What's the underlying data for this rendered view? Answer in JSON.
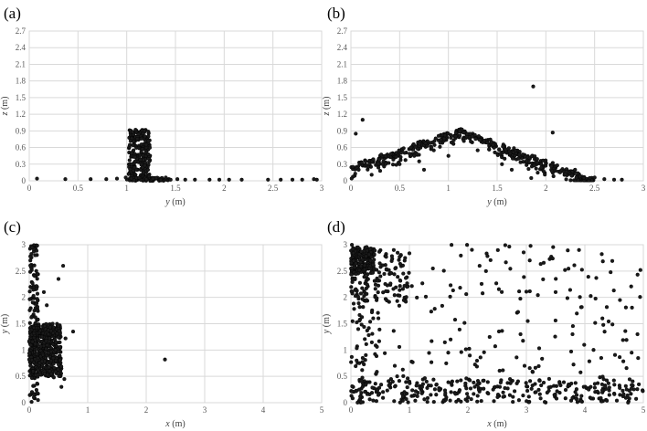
{
  "colors": {
    "point": "#1a1a1a",
    "grid": "#d9d9d9",
    "text": "#595959"
  },
  "chart_data": [
    {
      "id": "a",
      "panel_label": "(a)",
      "type": "scatter",
      "xlabel_var": "y",
      "xlabel_unit": " (m)",
      "ylabel_var": "z",
      "ylabel_unit": " (m)",
      "xlim": [
        0,
        3
      ],
      "ylim": [
        0,
        2.7
      ],
      "xticks": [
        "0",
        "0.5",
        "1",
        "1.5",
        "2",
        "2.5",
        "3"
      ],
      "yticks": [
        "0",
        "0.3",
        "0.6",
        "0.9",
        "1.2",
        "1.5",
        "1.8",
        "2.1",
        "2.4",
        "2.7"
      ],
      "grid": true,
      "points": [
        [
          0.08,
          0.04
        ],
        [
          0.37,
          0.03
        ],
        [
          0.63,
          0.03
        ],
        [
          0.79,
          0.03
        ],
        [
          0.9,
          0.04
        ],
        [
          0.99,
          0.06
        ],
        [
          1.02,
          0.12
        ],
        [
          1.05,
          0.3
        ],
        [
          1.07,
          0.55
        ],
        [
          1.04,
          0.72
        ],
        [
          1.06,
          0.88
        ],
        [
          1.09,
          0.92
        ],
        [
          1.12,
          0.84
        ],
        [
          1.15,
          0.76
        ],
        [
          1.18,
          0.9
        ],
        [
          1.2,
          0.65
        ],
        [
          1.22,
          0.48
        ],
        [
          1.14,
          0.38
        ],
        [
          1.1,
          0.2
        ],
        [
          1.17,
          0.15
        ],
        [
          1.23,
          0.08
        ],
        [
          1.27,
          0.04
        ],
        [
          1.35,
          0.02
        ],
        [
          1.45,
          0.02
        ],
        [
          1.52,
          0.03
        ],
        [
          1.6,
          0.02
        ],
        [
          1.7,
          0.02
        ],
        [
          1.85,
          0.02
        ],
        [
          1.95,
          0.02
        ],
        [
          2.05,
          0.02
        ],
        [
          2.18,
          0.02
        ],
        [
          2.45,
          0.02
        ],
        [
          2.58,
          0.02
        ],
        [
          2.7,
          0.02
        ],
        [
          2.8,
          0.02
        ],
        [
          2.92,
          0.03
        ],
        [
          2.95,
          0.02
        ]
      ],
      "clusters": [
        {
          "x": [
            1.02,
            1.24
          ],
          "y": [
            0.0,
            0.92
          ],
          "n": 230
        },
        {
          "x": [
            1.0,
            1.45
          ],
          "y": [
            0.0,
            0.06
          ],
          "n": 50
        }
      ]
    },
    {
      "id": "b",
      "panel_label": "(b)",
      "type": "scatter",
      "xlabel_var": "y",
      "xlabel_unit": " (m)",
      "ylabel_var": "z",
      "ylabel_unit": " (m)",
      "xlim": [
        0,
        3
      ],
      "ylim": [
        0,
        2.7
      ],
      "xticks": [
        "0",
        "0.5",
        "1",
        "1.5",
        "2",
        "2.5",
        "3"
      ],
      "yticks": [
        "0",
        "0.3",
        "0.6",
        "0.9",
        "1.2",
        "1.5",
        "1.8",
        "2.1",
        "2.4",
        "2.7"
      ],
      "grid": true,
      "points": [
        [
          0.05,
          0.85
        ],
        [
          0.12,
          1.1
        ],
        [
          0.02,
          0.25
        ],
        [
          0.08,
          0.2
        ],
        [
          1.87,
          1.7
        ],
        [
          2.07,
          0.87
        ],
        [
          0.3,
          0.18
        ],
        [
          0.5,
          0.3
        ],
        [
          0.7,
          0.35
        ],
        [
          0.75,
          0.2
        ],
        [
          1.0,
          0.45
        ],
        [
          1.3,
          0.55
        ],
        [
          1.55,
          0.3
        ],
        [
          1.65,
          0.2
        ],
        [
          1.72,
          0.4
        ],
        [
          1.85,
          0.05
        ],
        [
          1.9,
          0.22
        ],
        [
          2.2,
          0.12
        ],
        [
          2.35,
          0.08
        ],
        [
          2.45,
          0.05
        ],
        [
          2.6,
          0.03
        ],
        [
          2.7,
          0.02
        ],
        [
          2.78,
          0.02
        ],
        [
          2.3,
          0.2
        ],
        [
          2.5,
          0.06
        ],
        [
          1.95,
          0.3
        ],
        [
          0.65,
          0.45
        ],
        [
          0.85,
          0.55
        ]
      ],
      "profile": {
        "peak_x": 1.12,
        "peak_z": 0.92,
        "left_x": 0.0,
        "right_x": 2.5
      },
      "clusters": [
        {
          "profile": true,
          "n": 480
        }
      ]
    },
    {
      "id": "c",
      "panel_label": "(c)",
      "type": "scatter",
      "xlabel_var": "x",
      "xlabel_unit": " (m)",
      "ylabel_var": "y",
      "ylabel_unit": " (m)",
      "xlim": [
        0,
        5
      ],
      "ylim": [
        0,
        3
      ],
      "xticks": [
        "0",
        "1",
        "2",
        "3",
        "4",
        "5"
      ],
      "yticks": [
        "0",
        "0.5",
        "1",
        "1.5",
        "2",
        "2.5",
        "3"
      ],
      "grid": true,
      "points": [
        [
          2.32,
          0.82
        ],
        [
          0.58,
          2.6
        ],
        [
          0.5,
          2.35
        ],
        [
          0.3,
          1.85
        ],
        [
          0.75,
          1.35
        ],
        [
          0.62,
          1.22
        ],
        [
          0.6,
          0.45
        ],
        [
          0.55,
          0.3
        ],
        [
          0.05,
          2.95
        ],
        [
          0.1,
          2.8
        ],
        [
          0.12,
          2.5
        ],
        [
          0.25,
          2.1
        ],
        [
          0.35,
          0.6
        ],
        [
          0.42,
          0.48
        ],
        [
          0.08,
          0.1
        ],
        [
          0.15,
          0.05
        ],
        [
          0.4,
          1.5
        ],
        [
          0.45,
          1.0
        ]
      ],
      "clusters": [
        {
          "x": [
            0.0,
            0.55
          ],
          "y": [
            0.5,
            1.5
          ],
          "n": 450
        },
        {
          "x": [
            0.0,
            0.15
          ],
          "y": [
            0.0,
            3.0
          ],
          "n": 140
        }
      ]
    },
    {
      "id": "d",
      "panel_label": "(d)",
      "type": "scatter",
      "xlabel_var": "x",
      "xlabel_unit": " (m)",
      "ylabel_var": "y",
      "ylabel_unit": " (m)",
      "xlim": [
        0,
        5
      ],
      "ylim": [
        0,
        3
      ],
      "xticks": [
        "0",
        "1",
        "2",
        "3",
        "4",
        "5"
      ],
      "yticks": [
        "0",
        "0.5",
        "1",
        "1.5",
        "2",
        "2.5",
        "3"
      ],
      "grid": true,
      "points": [
        [
          4.95,
          2.52
        ],
        [
          4.6,
          1.95
        ],
        [
          4.8,
          0.95
        ],
        [
          4.3,
          1.6
        ],
        [
          3.9,
          2.9
        ],
        [
          3.5,
          2.1
        ],
        [
          2.9,
          1.3
        ],
        [
          2.2,
          2.6
        ],
        [
          4.1,
          0.3
        ],
        [
          4.6,
          0.15
        ],
        [
          4.9,
          1.3
        ]
      ],
      "clusters": [
        {
          "x": [
            0.0,
            0.4
          ],
          "y": [
            2.45,
            2.95
          ],
          "n": 150
        },
        {
          "x": [
            0.0,
            1.0
          ],
          "y": [
            1.9,
            2.9
          ],
          "n": 110
        },
        {
          "x": [
            0.0,
            5.0
          ],
          "y": [
            0.0,
            0.45
          ],
          "n": 280
        },
        {
          "x": [
            0.0,
            0.5
          ],
          "y": [
            0.0,
            3.0
          ],
          "n": 90
        },
        {
          "x": [
            0.0,
            5.0
          ],
          "y": [
            0.0,
            3.0
          ],
          "n": 220
        }
      ]
    }
  ]
}
